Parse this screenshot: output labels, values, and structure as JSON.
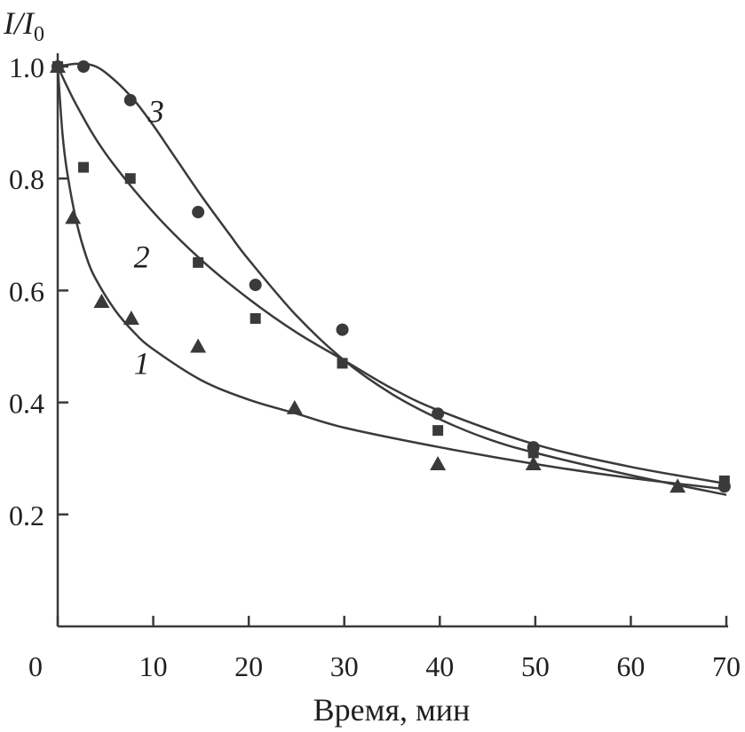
{
  "chart_data": {
    "type": "scatter",
    "title": "",
    "xlabel": "Время, мин",
    "ylabel_main": "I/I",
    "ylabel_sub": "0",
    "origin_label": "0",
    "xlim": [
      0,
      70
    ],
    "ylim": [
      0,
      1.0
    ],
    "x_ticks": [
      0,
      10,
      20,
      30,
      40,
      50,
      60,
      70
    ],
    "x_tick_labels": [
      "",
      "10",
      "20",
      "30",
      "40",
      "50",
      "60",
      "70"
    ],
    "y_ticks": [
      0.2,
      0.4,
      0.6,
      0.8,
      1.0
    ],
    "y_tick_labels": [
      "0.2",
      "0.4",
      "0.6",
      "0.8",
      "1.0"
    ],
    "grid": false,
    "color": "#3a3a3a",
    "series": [
      {
        "name": "1",
        "marker": "triangle",
        "label_pos": [
          8.8,
          0.47
        ],
        "points": [
          [
            0,
            1.0
          ],
          [
            1.6,
            0.73
          ],
          [
            4.6,
            0.58
          ],
          [
            7.7,
            0.55
          ],
          [
            14.7,
            0.5
          ],
          [
            24.8,
            0.39
          ],
          [
            39.8,
            0.29
          ],
          [
            49.8,
            0.29
          ],
          [
            64.9,
            0.25
          ]
        ],
        "curve": [
          [
            0,
            1.0
          ],
          [
            0.5,
            0.88
          ],
          [
            1,
            0.81
          ],
          [
            2,
            0.72
          ],
          [
            3,
            0.66
          ],
          [
            4,
            0.62
          ],
          [
            6,
            0.565
          ],
          [
            8,
            0.525
          ],
          [
            10,
            0.495
          ],
          [
            15,
            0.44
          ],
          [
            20,
            0.405
          ],
          [
            25,
            0.38
          ],
          [
            30,
            0.355
          ],
          [
            40,
            0.32
          ],
          [
            50,
            0.29
          ],
          [
            60,
            0.265
          ],
          [
            70,
            0.245
          ]
        ]
      },
      {
        "name": "2",
        "marker": "square",
        "label_pos": [
          8.8,
          0.66
        ],
        "points": [
          [
            0,
            1.0
          ],
          [
            2.7,
            0.82
          ],
          [
            7.6,
            0.8
          ],
          [
            14.7,
            0.65
          ],
          [
            20.7,
            0.55
          ],
          [
            29.8,
            0.47
          ],
          [
            39.8,
            0.35
          ],
          [
            49.8,
            0.31
          ],
          [
            69.8,
            0.26
          ]
        ],
        "curve": [
          [
            0,
            1.0
          ],
          [
            2,
            0.93
          ],
          [
            5,
            0.845
          ],
          [
            10,
            0.74
          ],
          [
            15,
            0.655
          ],
          [
            20,
            0.585
          ],
          [
            25,
            0.525
          ],
          [
            30,
            0.475
          ],
          [
            35,
            0.425
          ],
          [
            40,
            0.385
          ],
          [
            50,
            0.325
          ],
          [
            60,
            0.285
          ],
          [
            70,
            0.255
          ]
        ]
      },
      {
        "name": "3",
        "marker": "circle",
        "label_pos": [
          10.3,
          0.92
        ],
        "points": [
          [
            0,
            1.0
          ],
          [
            2.7,
            1.0
          ],
          [
            7.6,
            0.94
          ],
          [
            14.7,
            0.74
          ],
          [
            20.7,
            0.61
          ],
          [
            29.8,
            0.53
          ],
          [
            39.8,
            0.38
          ],
          [
            49.8,
            0.32
          ],
          [
            69.8,
            0.25
          ]
        ],
        "curve": [
          [
            0,
            1.0
          ],
          [
            2,
            1.005
          ],
          [
            4,
            1.0
          ],
          [
            6,
            0.975
          ],
          [
            8,
            0.94
          ],
          [
            10,
            0.895
          ],
          [
            12,
            0.845
          ],
          [
            15,
            0.77
          ],
          [
            18,
            0.7
          ],
          [
            20,
            0.655
          ],
          [
            25,
            0.555
          ],
          [
            30,
            0.475
          ],
          [
            35,
            0.415
          ],
          [
            40,
            0.37
          ],
          [
            45,
            0.335
          ],
          [
            50,
            0.31
          ],
          [
            60,
            0.27
          ],
          [
            70,
            0.235
          ]
        ]
      }
    ]
  }
}
